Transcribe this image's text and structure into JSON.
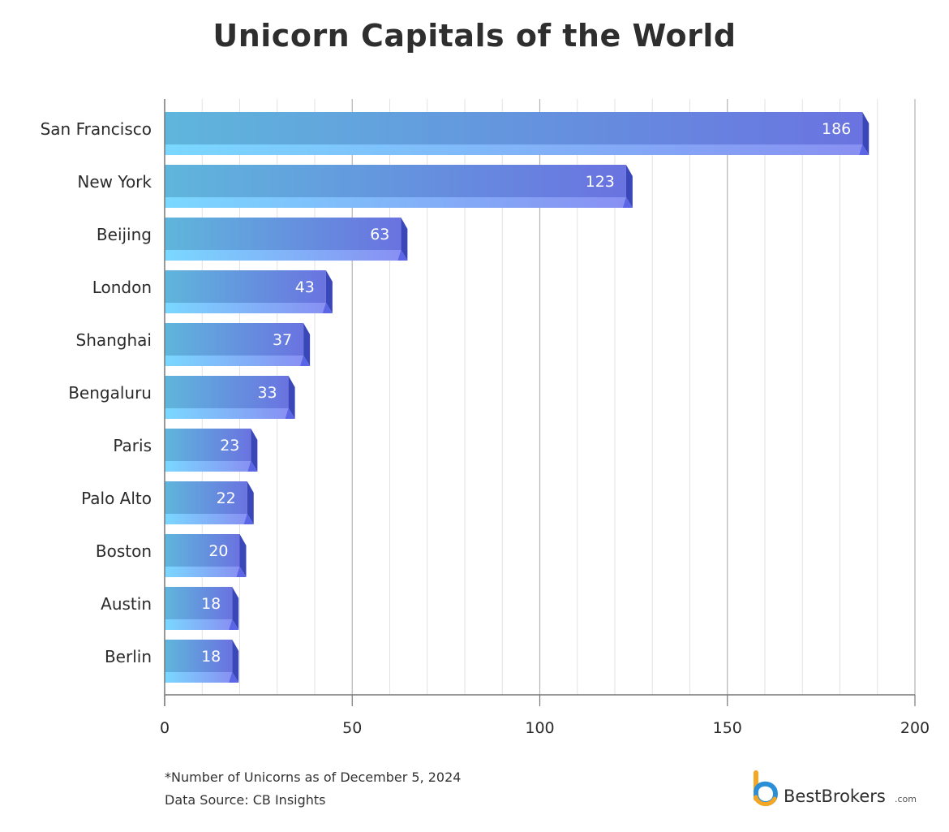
{
  "chart_data": {
    "type": "bar",
    "orientation": "horizontal",
    "title": "Unicorn Capitals of the World",
    "categories": [
      "San Francisco",
      "New York",
      "Beijing",
      "London",
      "Shanghai",
      "Bengaluru",
      "Paris",
      "Palo Alto",
      "Boston",
      "Austin",
      "Berlin"
    ],
    "values": [
      186,
      123,
      63,
      43,
      37,
      33,
      23,
      22,
      20,
      18,
      18
    ],
    "xlim": [
      0,
      200
    ],
    "xticks": [
      "0",
      "50",
      "100",
      "150",
      "200"
    ],
    "grid": true,
    "bar_colors": {
      "start": "#5fb6dc",
      "end": "#6a73e0",
      "highlight": "#7ad8ff",
      "side": "#3a47b8"
    }
  },
  "footnote": {
    "line1": "*Number of Unicorns as of December 5, 2024",
    "line2": "Data Source: CB Insights"
  },
  "brand": {
    "name": "BestBrokers",
    "suffix": ".com",
    "logo_icon": "bestbrokers-logo-icon"
  }
}
